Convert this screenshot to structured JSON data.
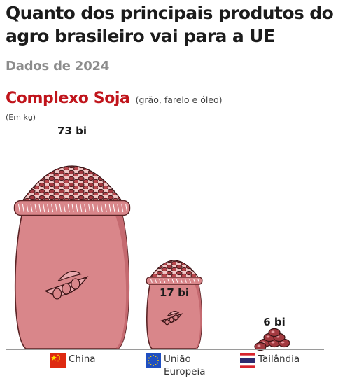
{
  "title": "Quanto dos principais produtos do agro brasileiro vai para a UE",
  "subtitle": "Dados de 2024",
  "chart_data": {
    "type": "bar",
    "title": "Complexo Soja",
    "note": "(grão, farelo e óleo)",
    "unit": "(Em kg)",
    "categories": [
      "China",
      "União Europeia",
      "Tailândia"
    ],
    "values": [
      73,
      17,
      6
    ],
    "value_labels": [
      "73 bi",
      "17 bi",
      "6 bi"
    ],
    "ylim": [
      0,
      73
    ],
    "colors": {
      "title": "#c0141b",
      "sack": "#d9868a",
      "bean": "#a33a40"
    }
  },
  "countries": [
    {
      "name": "China",
      "flag": "china-flag-icon"
    },
    {
      "name": "União\nEuropeia",
      "flag": "eu-flag-icon"
    },
    {
      "name": "Tailândia",
      "flag": "thailand-flag-icon"
    }
  ]
}
